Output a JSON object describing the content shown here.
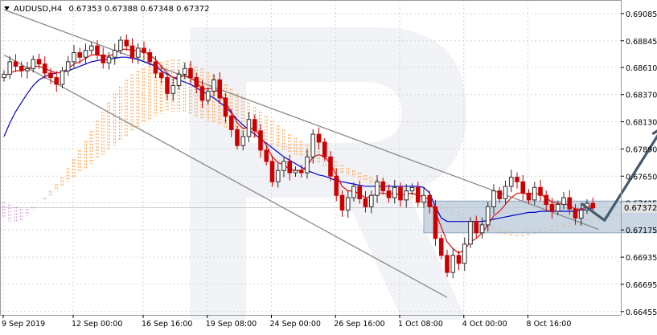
{
  "header": {
    "symbol": "AUDUSD,H4",
    "quotes": "0.67353 0.67388 0.67348 0.67372",
    "arrow_icon": "triangle-down-icon"
  },
  "chart_data": {
    "type": "candlestick",
    "symbol": "AUDUSD",
    "timeframe": "H4",
    "ohlc_last": {
      "open": 0.67353,
      "high": 0.67388,
      "low": 0.67348,
      "close": 0.67372
    },
    "current_price": 0.67372,
    "current_price_label": "0.67372",
    "ylim": [
      0.66425,
      0.69205
    ],
    "y_ticks": [
      0.69085,
      0.68845,
      0.6861,
      0.6837,
      0.6813,
      0.6789,
      0.6765,
      0.67415,
      0.67175,
      0.66935,
      0.66695,
      0.66455
    ],
    "y_tick_labels": [
      "0.69085",
      "0.68845",
      "0.68610",
      "0.68370",
      "0.68130",
      "0.67890",
      "0.67650",
      "0.67415",
      "0.67175",
      "0.66935",
      "0.66695",
      "0.66455"
    ],
    "x_labels": [
      "9 Sep 2019",
      "12 Sep 00:00",
      "16 Sep 16:00",
      "19 Sep 08:00",
      "24 Sep 00:00",
      "26 Sep 16:00",
      "1 Oct 08:00",
      "4 Oct 00:00",
      "8 Oct 16:00"
    ],
    "grid": true,
    "closes": [
      0.6855,
      0.6866,
      0.6862,
      0.6858,
      0.686,
      0.6868,
      0.6864,
      0.6856,
      0.6852,
      0.6846,
      0.6858,
      0.6866,
      0.6874,
      0.687,
      0.6876,
      0.688,
      0.6872,
      0.6865,
      0.687,
      0.6876,
      0.6885,
      0.688,
      0.687,
      0.6878,
      0.6874,
      0.6866,
      0.6856,
      0.6852,
      0.6838,
      0.6845,
      0.6855,
      0.686,
      0.6852,
      0.6844,
      0.6832,
      0.684,
      0.685,
      0.6834,
      0.6818,
      0.6806,
      0.6792,
      0.68,
      0.6815,
      0.6805,
      0.6788,
      0.6778,
      0.676,
      0.677,
      0.6778,
      0.6768,
      0.677,
      0.6768,
      0.6782,
      0.6802,
      0.6795,
      0.6782,
      0.6765,
      0.6748,
      0.6735,
      0.6746,
      0.6756,
      0.6745,
      0.6738,
      0.6748,
      0.676,
      0.6752,
      0.6746,
      0.6755,
      0.6744,
      0.6752,
      0.6755,
      0.6742,
      0.6748,
      0.6738,
      0.671,
      0.6695,
      0.668,
      0.6695,
      0.6688,
      0.6705,
      0.6725,
      0.6715,
      0.6722,
      0.6738,
      0.6752,
      0.6745,
      0.6756,
      0.6764,
      0.676,
      0.675,
      0.6744,
      0.6755,
      0.6748,
      0.674,
      0.6734,
      0.674,
      0.6746,
      0.6736,
      0.6728,
      0.6735,
      0.6741,
      0.6737
    ],
    "tenkan_sen": [
      0.6853,
      0.6856,
      0.6858,
      0.6858,
      0.686,
      0.6862,
      0.6862,
      0.686,
      0.6858,
      0.6856,
      0.6857,
      0.686,
      0.6864,
      0.6866,
      0.6869,
      0.6872,
      0.6872,
      0.6871,
      0.6871,
      0.6873,
      0.6877,
      0.6877,
      0.6876,
      0.6876,
      0.6875,
      0.6872,
      0.6868,
      0.6862,
      0.6856,
      0.6852,
      0.6852,
      0.6854,
      0.6852,
      0.6848,
      0.6842,
      0.6842,
      0.6843,
      0.6838,
      0.683,
      0.6822,
      0.6812,
      0.6807,
      0.6808,
      0.6806,
      0.68,
      0.6792,
      0.6782,
      0.6777,
      0.6775,
      0.6771,
      0.677,
      0.677,
      0.6774,
      0.6782,
      0.6784,
      0.6782,
      0.6776,
      0.6766,
      0.6756,
      0.6752,
      0.6752,
      0.6749,
      0.6746,
      0.6747,
      0.675,
      0.675,
      0.6749,
      0.675,
      0.6748,
      0.6749,
      0.675,
      0.6748,
      0.6747,
      0.6744,
      0.6733,
      0.672,
      0.6707,
      0.6701,
      0.6697,
      0.67,
      0.6707,
      0.671,
      0.6715,
      0.6722,
      0.673,
      0.6734,
      0.674,
      0.6746,
      0.675,
      0.675,
      0.6749,
      0.675,
      0.6749,
      0.6746,
      0.6742,
      0.6741,
      0.6741,
      0.6739,
      0.6736,
      0.6736,
      0.6738,
      0.6738
    ],
    "kijun_sen": [
      0.68,
      0.6812,
      0.6822,
      0.683,
      0.6838,
      0.6845,
      0.685,
      0.6853,
      0.6855,
      0.6856,
      0.6857,
      0.6858,
      0.686,
      0.6862,
      0.6864,
      0.6866,
      0.6867,
      0.6868,
      0.6868,
      0.6869,
      0.687,
      0.687,
      0.6869,
      0.6868,
      0.6866,
      0.6864,
      0.6862,
      0.6858,
      0.6855,
      0.6852,
      0.685,
      0.6848,
      0.6846,
      0.6843,
      0.684,
      0.6837,
      0.6834,
      0.683,
      0.6826,
      0.6821,
      0.6815,
      0.681,
      0.6806,
      0.6802,
      0.6798,
      0.6794,
      0.679,
      0.6786,
      0.6782,
      0.6779,
      0.6776,
      0.6773,
      0.677,
      0.6768,
      0.6766,
      0.6765,
      0.6763,
      0.6761,
      0.676,
      0.6759,
      0.6758,
      0.6757,
      0.6756,
      0.6756,
      0.6756,
      0.6756,
      0.6756,
      0.6756,
      0.6756,
      0.6756,
      0.6756,
      0.6756,
      0.6755,
      0.675,
      0.6738,
      0.6728,
      0.6725,
      0.6725,
      0.6725,
      0.6725,
      0.6725,
      0.6725,
      0.6725,
      0.6726,
      0.6727,
      0.6728,
      0.6729,
      0.673,
      0.6731,
      0.6732,
      0.6733,
      0.6733,
      0.6734,
      0.6734,
      0.6734,
      0.6734,
      0.6734,
      0.6734,
      0.6734,
      0.6735,
      0.6736,
      0.6737
    ],
    "cloud_span_a": [
      0.6728,
      0.6725,
      0.6724,
      0.6726,
      0.673,
      0.6735,
      0.674,
      0.6746,
      0.6752,
      0.6758,
      0.6764,
      0.6772,
      0.678,
      0.6788,
      0.6796,
      0.6805,
      0.6814,
      0.6822,
      0.683,
      0.6838,
      0.6844,
      0.685,
      0.6855,
      0.6858,
      0.686,
      0.6862,
      0.6864,
      0.6866,
      0.6867,
      0.6868,
      0.6868,
      0.6866,
      0.6864,
      0.6862,
      0.686,
      0.6857,
      0.6854,
      0.685,
      0.6846,
      0.6842,
      0.6838,
      0.6834,
      0.683,
      0.6826,
      0.6822,
      0.6818,
      0.6814,
      0.681,
      0.6806,
      0.6802,
      0.6799,
      0.6796,
      0.6793,
      0.679,
      0.6787,
      0.6784,
      0.6781,
      0.6778,
      0.6775,
      0.6772,
      0.677,
      0.6768,
      0.6766,
      0.6764,
      0.6762,
      0.676,
      0.6758,
      0.6756,
      0.6754,
      0.6752,
      0.675,
      0.6748,
      0.6746,
      0.6744,
      0.6742,
      0.674,
      0.6738,
      0.6736,
      0.6734,
      0.6732,
      0.673,
      0.6728,
      0.6726,
      0.6724,
      0.6722,
      0.672,
      0.6718,
      0.6717,
      0.6716,
      0.6716,
      0.6717,
      0.6718,
      0.6719,
      0.672,
      0.6721,
      0.6722,
      0.6723,
      0.6724,
      0.6725,
      0.6726,
      0.6727,
      0.6728,
      0.6729,
      0.673,
      0.673,
      0.6731,
      0.6731,
      0.6732,
      0.6732,
      0.6733,
      0.6733,
      0.6734,
      0.6734,
      0.6734,
      0.6735,
      0.6735,
      0.6735,
      0.6736,
      0.6736,
      0.6736,
      0.6737,
      0.6737,
      0.6737,
      0.6738,
      0.6738,
      0.6738
    ],
    "cloud_span_b": [
      0.6742,
      0.674,
      0.6738,
      0.6736,
      0.6736,
      0.6738,
      0.674,
      0.6744,
      0.6748,
      0.6752,
      0.6756,
      0.676,
      0.6764,
      0.6768,
      0.6772,
      0.6776,
      0.678,
      0.6784,
      0.6788,
      0.6792,
      0.6796,
      0.68,
      0.6804,
      0.6808,
      0.6812,
      0.6815,
      0.6818,
      0.682,
      0.6822,
      0.6822,
      0.6822,
      0.6821,
      0.682,
      0.6818,
      0.6816,
      0.6814,
      0.6812,
      0.681,
      0.6808,
      0.6806,
      0.6804,
      0.6802,
      0.68,
      0.6798,
      0.6796,
      0.6794,
      0.6792,
      0.679,
      0.6788,
      0.6786,
      0.6784,
      0.6782,
      0.678,
      0.6778,
      0.6776,
      0.6774,
      0.6772,
      0.677,
      0.6768,
      0.6766,
      0.6764,
      0.6762,
      0.676,
      0.6758,
      0.6756,
      0.6754,
      0.6752,
      0.675,
      0.6748,
      0.6746,
      0.6744,
      0.6742,
      0.674,
      0.6738,
      0.6736,
      0.6734,
      0.6732,
      0.673,
      0.6728,
      0.6726,
      0.6724,
      0.6722,
      0.672,
      0.6718,
      0.6716,
      0.6714,
      0.6713,
      0.6712,
      0.6712,
      0.6712,
      0.6713,
      0.6714,
      0.6715,
      0.6716,
      0.6717,
      0.6718,
      0.6719,
      0.672,
      0.6721,
      0.6722,
      0.6723,
      0.6724,
      0.6725,
      0.6726,
      0.6727,
      0.6728,
      0.6729,
      0.673,
      0.6731,
      0.6732,
      0.6733,
      0.6734,
      0.6735,
      0.6736,
      0.6736,
      0.6737,
      0.6737,
      0.6737,
      0.6738,
      0.6738,
      0.6738,
      0.6739,
      0.6739,
      0.6739,
      0.674,
      0.674
    ],
    "channel": {
      "upper_line": {
        "x1": 0,
        "y1": 0.6912,
        "x2": 102,
        "y2": 0.6718
      },
      "lower_line": {
        "x1": 0,
        "y1": 0.6872,
        "x2": 76,
        "y2": 0.6658
      }
    },
    "support_zone": {
      "x_from": 72,
      "x_to": 123,
      "y_low": 0.6715,
      "y_high": 0.6743
    },
    "forecast_path": [
      {
        "x": 99,
        "y": 0.6741
      },
      {
        "x": 103,
        "y": 0.6726
      },
      {
        "x": 113,
        "y": 0.6808
      }
    ],
    "colors": {
      "bull_candle": "#2c2c2c",
      "bear_candle": "#cc0000",
      "tenkan_sen": "#dd1111",
      "kijun_sen": "#0000cc",
      "cloud_bullish": "#ff9a3c",
      "cloud_bearish": "#c999d6",
      "channel": "#888888",
      "support_zone": "#b8c9da",
      "forecast_arrow": "#455a6c",
      "grid": "#d6d6d6",
      "price_label_bg": "#e3e3e3"
    }
  }
}
